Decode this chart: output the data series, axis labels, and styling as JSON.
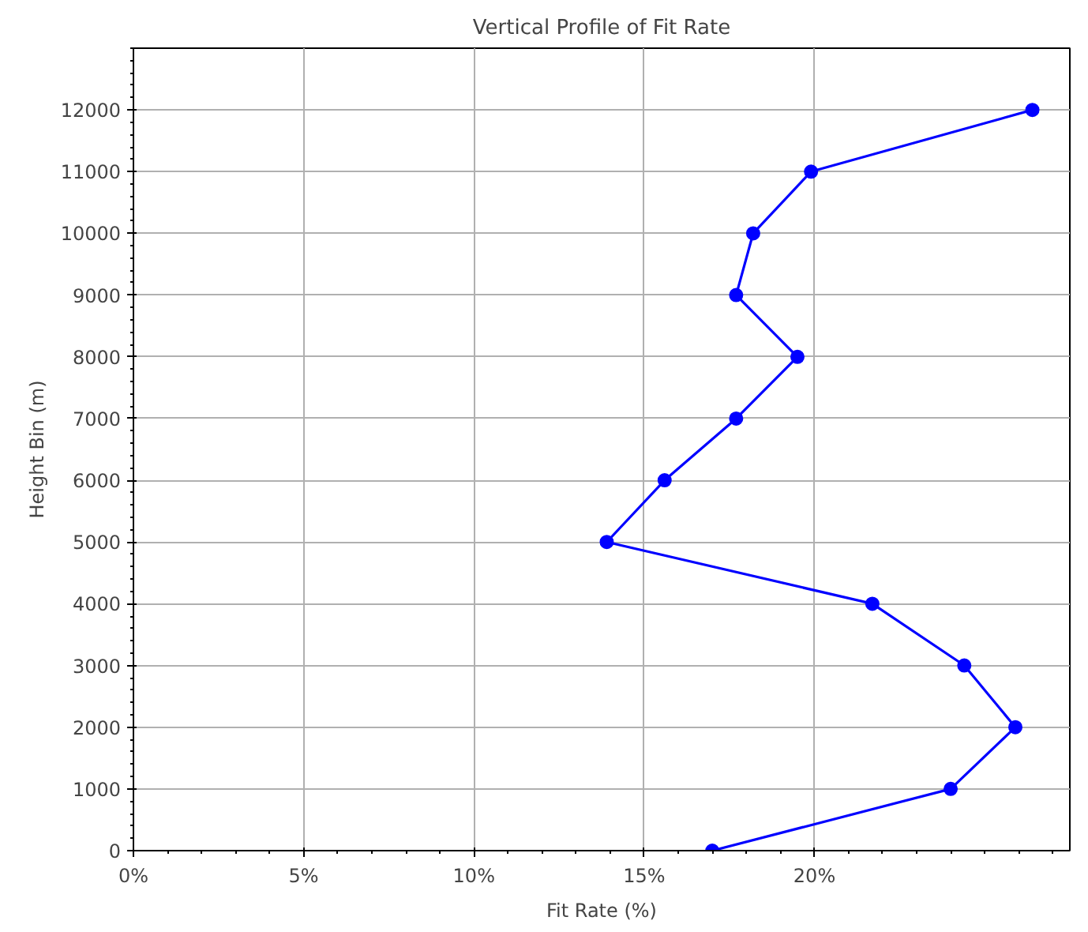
{
  "chart_data": {
    "type": "line",
    "title": "Vertical Profile of Fit Rate",
    "xlabel": "Fit Rate (%)",
    "ylabel": "Height Bin (m)",
    "x": [
      26.4,
      19.9,
      18.2,
      17.7,
      19.5,
      17.7,
      15.6,
      13.9,
      21.7,
      24.4,
      25.9,
      24.0,
      17.0
    ],
    "series": [
      {
        "color": "#0000ff",
        "values": [
          12000,
          11000,
          10000,
          9000,
          8000,
          7000,
          6000,
          5000,
          4000,
          3000,
          2000,
          1000,
          0
        ]
      }
    ],
    "xlim": [
      0,
      27.5
    ],
    "ylim": [
      0,
      13000
    ],
    "xticks": [
      {
        "value": 0,
        "label": "0%"
      },
      {
        "value": 5,
        "label": "5%"
      },
      {
        "value": 10,
        "label": "10%"
      },
      {
        "value": 15,
        "label": "15%"
      },
      {
        "value": 20,
        "label": "20%"
      }
    ],
    "yticks": [
      0,
      1000,
      2000,
      3000,
      4000,
      5000,
      6000,
      7000,
      8000,
      9000,
      10000,
      11000,
      12000
    ],
    "grid": true,
    "marker": "circle",
    "line_style": "solid"
  }
}
